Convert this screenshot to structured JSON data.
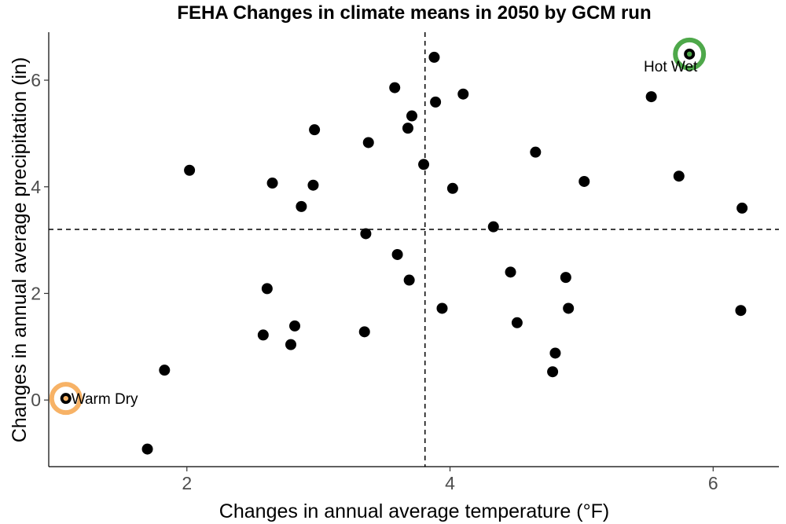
{
  "chart_data": {
    "type": "scatter",
    "title": "FEHA Changes in climate means in 2050 by GCM run",
    "xlabel": "Changes in annual average temperature (°F)",
    "ylabel": "Changes in annual average precipitation (in)",
    "xlim": [
      0.95,
      6.5
    ],
    "ylim": [
      -1.25,
      6.9
    ],
    "xticks": [
      2,
      4,
      6
    ],
    "yticks": [
      0,
      2,
      4,
      6
    ],
    "grid": false,
    "reference_lines": {
      "x": 3.81,
      "y": 3.2
    },
    "points": [
      {
        "x": 1.08,
        "y": 0.03
      },
      {
        "x": 1.7,
        "y": -0.92
      },
      {
        "x": 1.83,
        "y": 0.56
      },
      {
        "x": 2.02,
        "y": 4.31
      },
      {
        "x": 2.58,
        "y": 1.22
      },
      {
        "x": 2.61,
        "y": 2.09
      },
      {
        "x": 2.65,
        "y": 4.07
      },
      {
        "x": 2.79,
        "y": 1.04
      },
      {
        "x": 2.82,
        "y": 1.39
      },
      {
        "x": 2.87,
        "y": 3.63
      },
      {
        "x": 2.96,
        "y": 4.03
      },
      {
        "x": 2.97,
        "y": 5.07
      },
      {
        "x": 3.35,
        "y": 1.28
      },
      {
        "x": 3.36,
        "y": 3.12
      },
      {
        "x": 3.38,
        "y": 4.83
      },
      {
        "x": 3.58,
        "y": 5.86
      },
      {
        "x": 3.6,
        "y": 2.73
      },
      {
        "x": 3.68,
        "y": 5.1
      },
      {
        "x": 3.69,
        "y": 2.25
      },
      {
        "x": 3.71,
        "y": 5.33
      },
      {
        "x": 3.8,
        "y": 4.42
      },
      {
        "x": 3.88,
        "y": 6.43
      },
      {
        "x": 3.89,
        "y": 5.59
      },
      {
        "x": 3.94,
        "y": 1.72
      },
      {
        "x": 4.02,
        "y": 3.97
      },
      {
        "x": 4.1,
        "y": 5.74
      },
      {
        "x": 4.33,
        "y": 3.25
      },
      {
        "x": 4.46,
        "y": 2.4
      },
      {
        "x": 4.51,
        "y": 1.45
      },
      {
        "x": 4.65,
        "y": 4.65
      },
      {
        "x": 4.78,
        "y": 0.53
      },
      {
        "x": 4.8,
        "y": 0.88
      },
      {
        "x": 4.88,
        "y": 2.3
      },
      {
        "x": 4.9,
        "y": 1.72
      },
      {
        "x": 5.02,
        "y": 4.1
      },
      {
        "x": 5.53,
        "y": 5.69
      },
      {
        "x": 5.74,
        "y": 4.2
      },
      {
        "x": 5.82,
        "y": 6.49
      },
      {
        "x": 6.21,
        "y": 1.68
      },
      {
        "x": 6.22,
        "y": 3.6
      }
    ],
    "highlights": [
      {
        "label": "Warm Dry",
        "x": 1.08,
        "y": 0.03,
        "color": "#f7b266",
        "label_position": "right"
      },
      {
        "label": "Hot Wet",
        "x": 5.82,
        "y": 6.49,
        "color": "#4ea84a",
        "label_position": "below"
      }
    ],
    "point_color": "#000000"
  }
}
